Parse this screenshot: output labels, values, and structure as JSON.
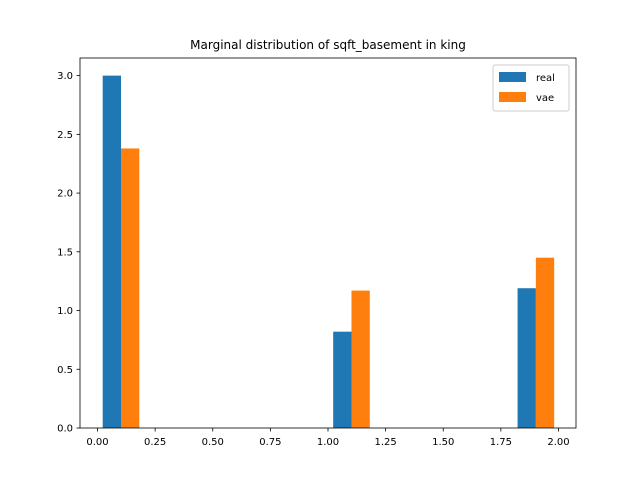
{
  "chart_data": {
    "type": "bar",
    "title": "Marginal distribution of sqft_basement in king",
    "xlabel": "",
    "ylabel": "",
    "xlim": [
      -0.076,
      2.076
    ],
    "ylim": [
      0,
      3.15
    ],
    "xticks": [
      "0.00",
      "0.25",
      "0.50",
      "0.75",
      "1.00",
      "1.25",
      "1.50",
      "1.75",
      "2.00"
    ],
    "yticks": [
      "0.0",
      "0.5",
      "1.0",
      "1.5",
      "2.0",
      "2.5",
      "3.0"
    ],
    "bin_width": 0.0794,
    "legend_position": "top-right",
    "series": [
      {
        "name": "real",
        "color": "#1f77b4",
        "x": [
          0.0225,
          1.0225,
          1.8225
        ],
        "values": [
          3.0,
          0.82,
          1.19
        ]
      },
      {
        "name": "vae",
        "color": "#ff7f0e",
        "x": [
          0.1019,
          1.1019,
          1.9019
        ],
        "values": [
          2.38,
          1.17,
          1.45
        ]
      }
    ]
  }
}
